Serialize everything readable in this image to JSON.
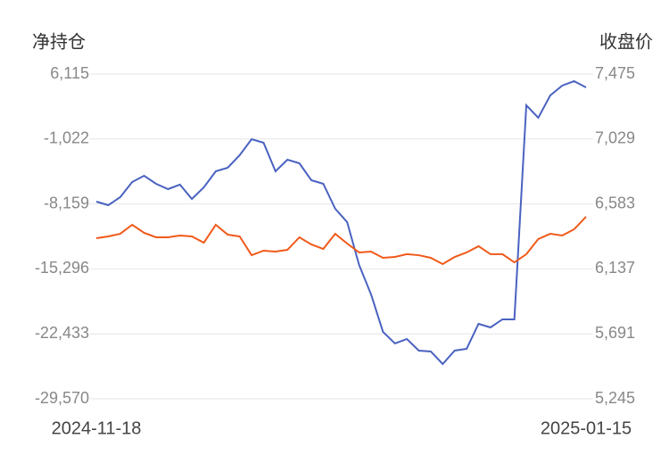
{
  "chart_data": {
    "type": "line",
    "y_label": "净持仓",
    "y2_label": "收盘价",
    "categories": [
      "2024-11-18",
      null,
      null,
      null,
      null,
      null,
      null,
      null,
      null,
      null,
      null,
      null,
      null,
      null,
      null,
      null,
      null,
      null,
      null,
      null,
      null,
      null,
      null,
      null,
      null,
      null,
      null,
      null,
      null,
      null,
      null,
      null,
      null,
      null,
      null,
      null,
      null,
      null,
      null,
      null,
      null,
      "2025-01-15"
    ],
    "ylim": [
      -29570,
      6115
    ],
    "yticks": [
      {
        "value": 6115,
        "label": "6,115"
      },
      {
        "value": -1022,
        "label": "-1,022"
      },
      {
        "value": -8159,
        "label": "-8,159"
      },
      {
        "value": -15296,
        "label": "-15,296"
      },
      {
        "value": -22433,
        "label": "-22,433"
      },
      {
        "value": -29570,
        "label": "-29,570"
      }
    ],
    "y2lim": [
      5245,
      7475
    ],
    "y2ticks": [
      {
        "value": 7475,
        "label": "7,475"
      },
      {
        "value": 7029,
        "label": "7,029"
      },
      {
        "value": 6583,
        "label": "6,583"
      },
      {
        "value": 6137,
        "label": "6,137"
      },
      {
        "value": 5691,
        "label": "5,691"
      },
      {
        "value": 5245,
        "label": "5,245"
      }
    ],
    "grid": true,
    "series": [
      {
        "name": "净持仓",
        "color": "#4a62c0",
        "values": [
          -7903,
          -8295,
          -7413,
          -5747,
          -5060,
          -5943,
          -6531,
          -6041,
          -7609,
          -6335,
          -4570,
          -4178,
          -2806,
          -1041,
          -1433,
          -4570,
          -3296,
          -3688,
          -5551,
          -5943,
          -8688,
          -10158,
          -14863,
          -18098,
          -22216,
          -23490,
          -23000,
          -24274,
          -24372,
          -25745,
          -24274,
          -24078,
          -21333,
          -21726,
          -20843,
          -20843,
          2684,
          1312,
          3762,
          4841,
          5331,
          4645
        ]
      },
      {
        "name": "收盘价",
        "color": "#f05a1a",
        "axis": "y2",
        "values": [
          6348,
          6360,
          6378,
          6440,
          6385,
          6354,
          6354,
          6366,
          6360,
          6317,
          6440,
          6372,
          6360,
          6231,
          6262,
          6256,
          6268,
          6354,
          6305,
          6274,
          6378,
          6311,
          6250,
          6256,
          6213,
          6219,
          6238,
          6231,
          6213,
          6170,
          6219,
          6250,
          6293,
          6238,
          6238,
          6182,
          6238,
          6342,
          6378,
          6366,
          6409,
          6495
        ]
      }
    ]
  }
}
